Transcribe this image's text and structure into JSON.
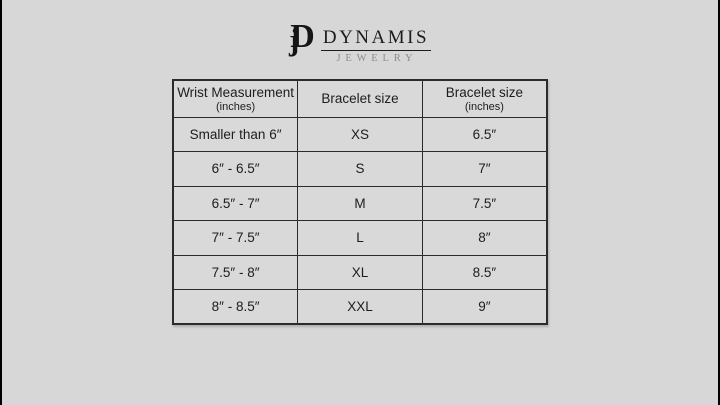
{
  "page": {
    "background_color": "#d7d7d7",
    "edge_bar_color": "#000000"
  },
  "logo": {
    "monogram_j": "j",
    "monogram_d": "D",
    "name": "DYNAMIS",
    "subtitle": "JEWELRY",
    "name_color": "#1c1c1c",
    "subtitle_color": "#8c8c8c"
  },
  "chart_data": {
    "type": "table",
    "columns": [
      {
        "title": "Wrist Measurement",
        "subtitle": "(inches)"
      },
      {
        "title": "Bracelet size",
        "subtitle": ""
      },
      {
        "title": "Bracelet size",
        "subtitle": "(inches)"
      }
    ],
    "rows": [
      [
        "Smaller than 6″",
        "XS",
        "6.5″"
      ],
      [
        "6″ - 6.5″",
        "S",
        "7″"
      ],
      [
        "6.5″ - 7″",
        "M",
        "7.5″"
      ],
      [
        "7″ - 7.5″",
        "L",
        "8″"
      ],
      [
        "7.5″ - 8″",
        "XL",
        "8.5″"
      ],
      [
        "8″ - 8.5″",
        "XXL",
        "9″"
      ]
    ],
    "border_color": "#2b2b2b",
    "text_color": "#1d1d1d"
  }
}
